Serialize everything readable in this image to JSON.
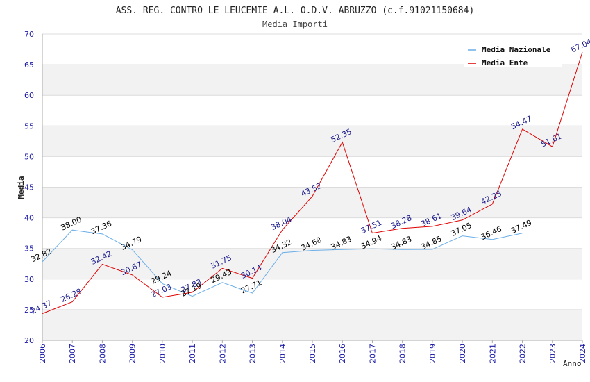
{
  "chart_data": {
    "type": "line",
    "title": "ASS. REG. CONTRO LE LEUCEMIE A.L. O.D.V. ABRUZZO (c.f.91021150684)",
    "subtitle": "Media Importi",
    "xlabel": "Anno",
    "ylabel": "Media",
    "ylim": [
      20,
      70
    ],
    "yticks": [
      20,
      25,
      30,
      35,
      40,
      45,
      50,
      55,
      60,
      65,
      70
    ],
    "categories": [
      "2006",
      "2007",
      "2008",
      "2009",
      "2010",
      "2011",
      "2012",
      "2013",
      "2014",
      "2015",
      "2016",
      "2017",
      "2018",
      "2019",
      "2020",
      "2021",
      "2022",
      "2023",
      "2024"
    ],
    "legend_position": "top-right",
    "grid": true,
    "series": [
      {
        "name": "Media Nazionale",
        "color": "#6aaee8",
        "label_color": "#000000",
        "values": [
          32.82,
          38.0,
          37.36,
          34.79,
          29.24,
          27.19,
          29.43,
          27.71,
          34.32,
          34.68,
          34.83,
          34.94,
          34.83,
          34.85,
          37.05,
          36.46,
          37.49,
          null,
          null
        ],
        "labels": [
          "32.82",
          "38.00",
          "37.36",
          "34.79",
          "29.24",
          "27.19",
          "29.43",
          "27.71",
          "34.32",
          "34.68",
          "34.83",
          "34.94",
          "34.83",
          "34.85",
          "37.05",
          "36.46",
          "37.49",
          "",
          ""
        ]
      },
      {
        "name": "Media Ente",
        "color": "#e00000",
        "label_color": "#1c1c8c",
        "values": [
          24.37,
          26.28,
          32.42,
          30.67,
          27.03,
          27.83,
          31.75,
          30.14,
          38.04,
          43.52,
          52.35,
          37.51,
          38.28,
          38.61,
          39.64,
          42.25,
          54.47,
          51.61,
          67.04
        ],
        "labels": [
          "24.37",
          "26.28",
          "32.42",
          "30.67",
          "27.03",
          "27.83",
          "31.75",
          "30.14",
          "38.04",
          "43.52",
          "52.35",
          "37.51",
          "38.28",
          "38.61",
          "39.64",
          "42.25",
          "54.47",
          "51.61",
          "67.04"
        ]
      }
    ],
    "colors": {
      "axis_text": "#1a1aa6",
      "band": "#f2f2f2",
      "grid": "#dcdcdc",
      "axis": "#aaaaaa"
    }
  }
}
